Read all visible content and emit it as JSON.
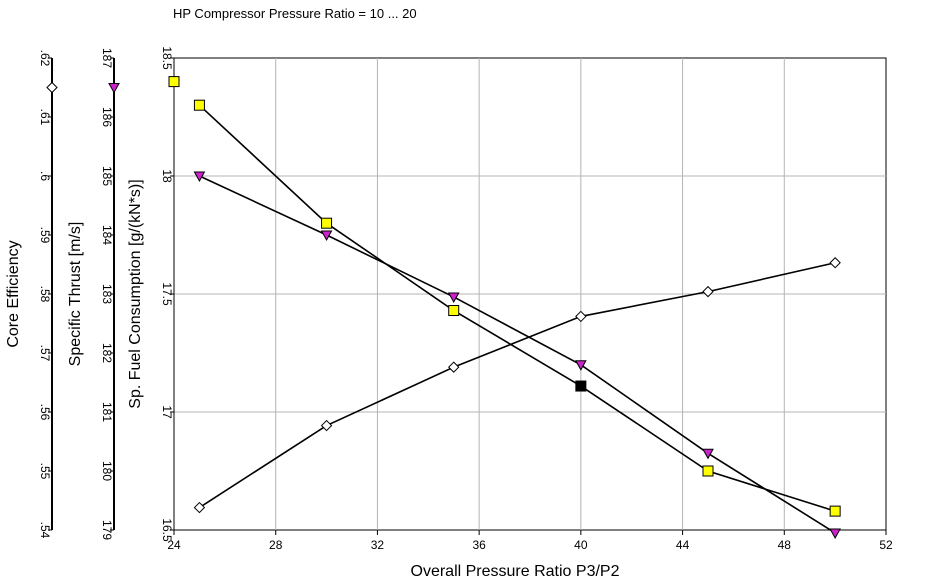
{
  "chart_data": {
    "type": "line",
    "title": "HP Compressor Pressure Ratio = 10 ... 20",
    "xlabel": "Overall Pressure Ratio P3/P2",
    "xlim": [
      24,
      52
    ],
    "xticks": [
      24,
      28,
      32,
      36,
      40,
      44,
      48,
      52
    ],
    "grid": true,
    "axes": [
      {
        "id": "sfc",
        "label": "Sp. Fuel Consumption [g/(kN*s)]",
        "ylim": [
          16.5,
          18.5
        ],
        "ticks": [
          "16.5",
          "17",
          "17.5",
          "18",
          "18.5"
        ]
      },
      {
        "id": "thrust",
        "label": "Specific Thrust [m/s]",
        "ylim": [
          179,
          187
        ],
        "ticks": [
          "179",
          "180",
          "181",
          "182",
          "183",
          "184",
          "185",
          "186",
          "187"
        ]
      },
      {
        "id": "eff",
        "label": "Core Efficiency",
        "ylim": [
          0.54,
          0.62
        ],
        "ticks": [
          ".54",
          ".55",
          ".56",
          ".57",
          ".58",
          ".59",
          ".6",
          ".61",
          ".62"
        ]
      }
    ],
    "series": [
      {
        "axis": "sfc",
        "marker": "square",
        "color": "#ffff00",
        "x": [
          25,
          30,
          35,
          40,
          45,
          50
        ],
        "y": [
          18.3,
          17.8,
          17.43,
          17.11,
          16.75,
          16.58
        ],
        "highlight": {
          "x": 40,
          "y": 17.11,
          "color": "#000000"
        }
      },
      {
        "axis": "thrust",
        "marker": "triangle-down",
        "color": "#cc22cc",
        "x": [
          25,
          30,
          35,
          40,
          45,
          50
        ],
        "y": [
          185.0,
          184.0,
          182.95,
          181.8,
          180.3,
          178.95
        ]
      },
      {
        "axis": "eff",
        "marker": "diamond",
        "color": "#ffffff",
        "x": [
          25,
          30,
          35,
          40,
          45,
          50
        ],
        "y": [
          0.5438,
          0.5577,
          0.5676,
          0.5762,
          0.5804,
          0.5853
        ]
      }
    ],
    "axis_markers": [
      {
        "axis": "sfc",
        "marker": "square",
        "color": "#ffff00",
        "value": 18.4
      },
      {
        "axis": "thrust",
        "marker": "triangle-down",
        "color": "#cc22cc",
        "value": 186.5
      },
      {
        "axis": "eff",
        "marker": "diamond",
        "color": "#ffffff",
        "value": 0.615
      }
    ]
  }
}
